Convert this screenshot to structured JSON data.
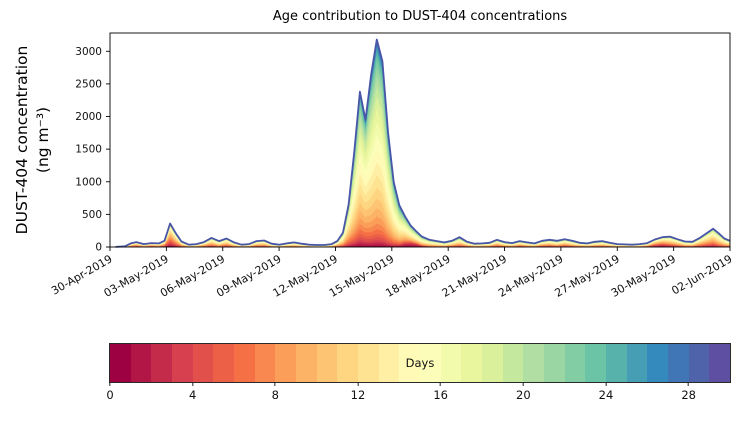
{
  "chart_data": {
    "type": "area",
    "subtype": "stacked-area-by-age",
    "title": "Age contribution to DUST-404 concentrations",
    "ylabel_line1": "DUST-404 concentration",
    "ylabel_line2": "(ng m⁻³)",
    "xlim": [
      0,
      33
    ],
    "ylim": [
      0,
      3280
    ],
    "yticks": [
      0,
      500,
      1000,
      1500,
      2000,
      2500,
      3000
    ],
    "x_ticks": [
      {
        "day": 0,
        "label": "30-Apr-2019"
      },
      {
        "day": 3,
        "label": "03-May-2019"
      },
      {
        "day": 6,
        "label": "06-May-2019"
      },
      {
        "day": 9,
        "label": "09-May-2019"
      },
      {
        "day": 12,
        "label": "12-May-2019"
      },
      {
        "day": 15,
        "label": "15-May-2019"
      },
      {
        "day": 18,
        "label": "18-May-2019"
      },
      {
        "day": 21,
        "label": "21-May-2019"
      },
      {
        "day": 24,
        "label": "24-May-2019"
      },
      {
        "day": 27,
        "label": "27-May-2019"
      },
      {
        "day": 30,
        "label": "30-May-2019"
      },
      {
        "day": 33,
        "label": "02-Jun-2019"
      }
    ],
    "n_age_layers": 30,
    "young_component": {
      "center": 1.2,
      "spread": 1.5
    },
    "points_schema": [
      "day",
      "total_ng_m3",
      "age_center_days",
      "age_spread_days",
      "young_fraction"
    ],
    "points": [
      [
        0.3,
        2,
        11,
        7,
        0.1
      ],
      [
        0.8,
        10,
        11,
        7,
        0.1
      ],
      [
        1.1,
        55,
        10,
        6,
        0.15
      ],
      [
        1.4,
        75,
        10,
        6,
        0.2
      ],
      [
        1.8,
        45,
        11,
        6,
        0.12
      ],
      [
        2.2,
        60,
        10,
        6,
        0.18
      ],
      [
        2.6,
        55,
        11,
        6,
        0.15
      ],
      [
        2.9,
        95,
        10,
        6,
        0.2
      ],
      [
        3.2,
        360,
        9,
        6,
        0.2
      ],
      [
        3.5,
        210,
        10,
        6,
        0.15
      ],
      [
        3.8,
        85,
        11,
        6,
        0.1
      ],
      [
        4.2,
        35,
        12,
        7,
        0.08
      ],
      [
        4.6,
        45,
        12,
        7,
        0.1
      ],
      [
        5.0,
        75,
        11,
        6,
        0.15
      ],
      [
        5.4,
        140,
        11,
        6,
        0.15
      ],
      [
        5.8,
        90,
        12,
        6,
        0.1
      ],
      [
        6.2,
        130,
        11,
        6,
        0.15
      ],
      [
        6.6,
        70,
        12,
        6,
        0.1
      ],
      [
        7.0,
        35,
        12,
        7,
        0.08
      ],
      [
        7.4,
        45,
        12,
        7,
        0.1
      ],
      [
        7.8,
        90,
        11,
        6,
        0.12
      ],
      [
        8.2,
        100,
        11,
        6,
        0.12
      ],
      [
        8.6,
        50,
        12,
        7,
        0.1
      ],
      [
        9.0,
        35,
        12,
        7,
        0.08
      ],
      [
        9.4,
        55,
        12,
        7,
        0.1
      ],
      [
        9.8,
        70,
        12,
        7,
        0.1
      ],
      [
        10.2,
        50,
        12,
        7,
        0.1
      ],
      [
        10.6,
        35,
        12,
        7,
        0.08
      ],
      [
        11.0,
        30,
        12,
        7,
        0.08
      ],
      [
        11.4,
        30,
        12,
        7,
        0.08
      ],
      [
        11.8,
        45,
        12,
        7,
        0.1
      ],
      [
        12.1,
        90,
        12,
        6,
        0.12
      ],
      [
        12.4,
        220,
        13,
        6,
        0.1
      ],
      [
        12.7,
        650,
        13,
        6,
        0.1
      ],
      [
        13.0,
        1450,
        14,
        6,
        0.08
      ],
      [
        13.3,
        2380,
        14,
        6,
        0.08
      ],
      [
        13.6,
        1950,
        14,
        6,
        0.08
      ],
      [
        13.9,
        2650,
        15,
        6,
        0.06
      ],
      [
        14.2,
        3180,
        15,
        6,
        0.06
      ],
      [
        14.5,
        2850,
        15,
        6,
        0.06
      ],
      [
        14.8,
        1750,
        15,
        6,
        0.06
      ],
      [
        15.1,
        1000,
        15,
        6,
        0.08
      ],
      [
        15.4,
        640,
        15,
        6,
        0.15
      ],
      [
        15.7,
        470,
        14,
        6,
        0.35
      ],
      [
        16.0,
        330,
        14,
        6,
        0.5
      ],
      [
        16.3,
        240,
        14,
        6,
        0.5
      ],
      [
        16.6,
        160,
        14,
        6,
        0.35
      ],
      [
        17.0,
        110,
        13,
        6,
        0.15
      ],
      [
        17.4,
        90,
        13,
        6,
        0.1
      ],
      [
        17.8,
        70,
        13,
        7,
        0.1
      ],
      [
        18.2,
        95,
        12,
        7,
        0.1
      ],
      [
        18.6,
        150,
        12,
        7,
        0.1
      ],
      [
        19.0,
        80,
        12,
        7,
        0.1
      ],
      [
        19.4,
        50,
        12,
        7,
        0.08
      ],
      [
        19.8,
        55,
        12,
        7,
        0.1
      ],
      [
        20.2,
        65,
        12,
        7,
        0.1
      ],
      [
        20.6,
        110,
        11,
        7,
        0.12
      ],
      [
        21.0,
        75,
        12,
        7,
        0.1
      ],
      [
        21.4,
        60,
        12,
        7,
        0.1
      ],
      [
        21.8,
        90,
        11,
        7,
        0.12
      ],
      [
        22.2,
        70,
        12,
        7,
        0.1
      ],
      [
        22.6,
        55,
        12,
        7,
        0.1
      ],
      [
        23.0,
        95,
        11,
        7,
        0.12
      ],
      [
        23.4,
        110,
        11,
        7,
        0.12
      ],
      [
        23.8,
        95,
        12,
        7,
        0.1
      ],
      [
        24.2,
        120,
        11,
        7,
        0.12
      ],
      [
        24.6,
        95,
        12,
        7,
        0.1
      ],
      [
        25.0,
        65,
        12,
        7,
        0.1
      ],
      [
        25.4,
        55,
        12,
        7,
        0.08
      ],
      [
        25.8,
        80,
        12,
        7,
        0.1
      ],
      [
        26.2,
        90,
        12,
        7,
        0.1
      ],
      [
        26.6,
        65,
        12,
        7,
        0.08
      ],
      [
        27.0,
        45,
        12,
        7,
        0.08
      ],
      [
        27.4,
        40,
        12,
        7,
        0.08
      ],
      [
        27.8,
        35,
        12,
        7,
        0.08
      ],
      [
        28.2,
        45,
        12,
        7,
        0.1
      ],
      [
        28.6,
        60,
        11,
        7,
        0.15
      ],
      [
        29.0,
        115,
        10,
        6,
        0.4
      ],
      [
        29.4,
        150,
        10,
        6,
        0.45
      ],
      [
        29.8,
        160,
        11,
        6,
        0.3
      ],
      [
        30.2,
        120,
        11,
        6,
        0.2
      ],
      [
        30.6,
        85,
        12,
        7,
        0.12
      ],
      [
        31.0,
        80,
        12,
        7,
        0.1
      ],
      [
        31.4,
        140,
        11,
        6,
        0.15
      ],
      [
        31.8,
        220,
        11,
        6,
        0.15
      ],
      [
        32.1,
        280,
        11,
        6,
        0.15
      ],
      [
        32.4,
        210,
        12,
        6,
        0.12
      ],
      [
        32.7,
        130,
        12,
        6,
        0.1
      ],
      [
        33.0,
        95,
        12,
        6,
        0.1
      ]
    ],
    "colormap_stops": [
      "#9e0142",
      "#d53e4f",
      "#f46d43",
      "#fdae61",
      "#fee08b",
      "#ffffbf",
      "#e6f598",
      "#abdda4",
      "#66c2a5",
      "#3288bd",
      "#5e4fa2"
    ],
    "envelope_color": "#4956a8",
    "axis_color": "#000000",
    "colorbar": {
      "label": "Days",
      "ticks": [
        0,
        4,
        8,
        12,
        16,
        20,
        24,
        28
      ],
      "range": [
        0,
        30
      ],
      "segments": 30,
      "orientation": "horizontal"
    }
  }
}
